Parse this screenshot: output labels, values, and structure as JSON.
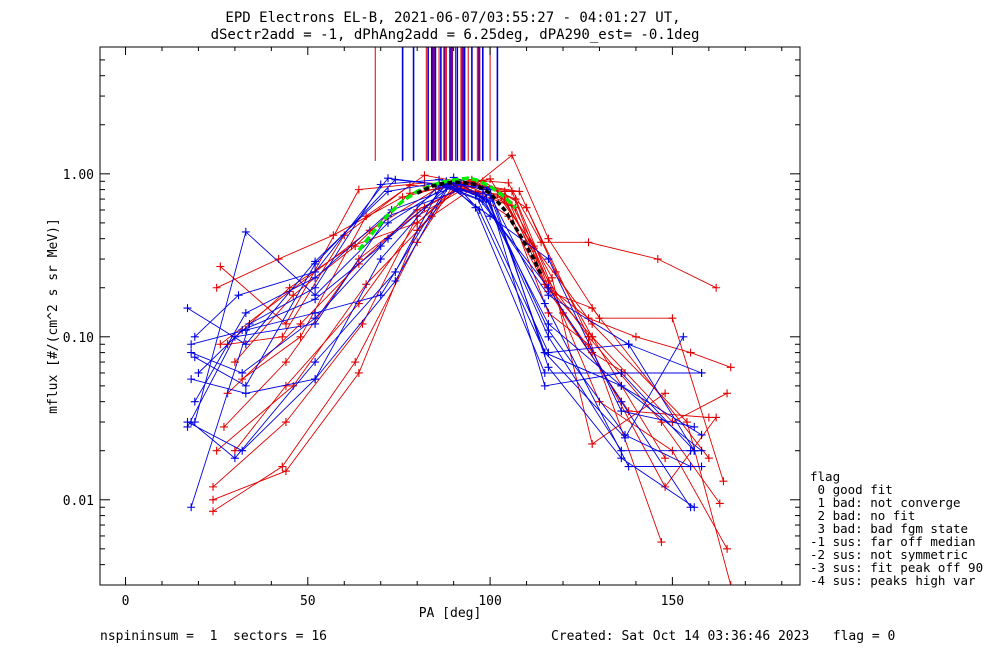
{
  "chart_data": {
    "type": "line",
    "title": "EPD Electrons EL-B, 2021-06-07/03:55:27 - 04:01:27 UT,",
    "subtitle": "dSectr2add = -1, dPhAng2add = 6.25deg, dPA290_est=  -0.1deg",
    "xlabel": "PA [deg]",
    "ylabel": "mflux [#/(cm^2 s sr MeV)]",
    "xlim": [
      -7,
      185
    ],
    "ylim": [
      0.003,
      6.0
    ],
    "yscale": "log",
    "xticks": [
      0,
      50,
      100,
      150
    ],
    "xtick_labels": [
      "0",
      "50",
      "100",
      "150"
    ],
    "yticks": [
      1.0,
      0.1,
      0.01
    ],
    "ytick_labels": [
      "1.00",
      "0.10",
      "0.01"
    ],
    "grid": false,
    "colors": {
      "red": "#e00000",
      "blue": "#0000e0",
      "purple": "#800080",
      "green": "#00ee00",
      "black": "#000000"
    },
    "top_markers": {
      "y_bottom": 1.2,
      "red": [
        68.5,
        82.5,
        86,
        88,
        90.5,
        92,
        94,
        96.5,
        100
      ],
      "blue": [
        76,
        79,
        83,
        84,
        85,
        86.5,
        89,
        91,
        93,
        95,
        98,
        102
      ],
      "purple": [
        84.5,
        87.5,
        89.5,
        92.5,
        97
      ]
    },
    "fit_green": {
      "x": [
        64,
        68,
        72,
        76,
        80,
        84,
        88,
        92,
        94,
        96,
        100,
        104,
        107
      ],
      "y": [
        0.34,
        0.44,
        0.56,
        0.68,
        0.78,
        0.85,
        0.9,
        0.93,
        0.94,
        0.92,
        0.84,
        0.72,
        0.62
      ]
    },
    "fit_black": {
      "x": [
        80,
        84,
        88,
        92,
        96,
        100,
        104,
        108,
        112,
        114
      ],
      "y": [
        0.76,
        0.84,
        0.88,
        0.89,
        0.86,
        0.76,
        0.6,
        0.43,
        0.3,
        0.24
      ]
    },
    "series": [
      {
        "color": "red",
        "x": [
          24,
          43,
          63,
          80,
          90,
          107,
          116,
          128,
          137
        ],
        "y": [
          0.0085,
          0.016,
          0.07,
          0.38,
          0.86,
          0.62,
          0.19,
          0.08,
          0.06
        ]
      },
      {
        "color": "red",
        "x": [
          24,
          44,
          64,
          80,
          92,
          106,
          116,
          128,
          148
        ],
        "y": [
          0.01,
          0.015,
          0.06,
          0.45,
          0.88,
          0.78,
          0.2,
          0.1,
          0.018
        ]
      },
      {
        "color": "red",
        "x": [
          27,
          44,
          64,
          82,
          95,
          107,
          120,
          138,
          160
        ],
        "y": [
          0.028,
          0.07,
          0.3,
          0.62,
          0.9,
          0.7,
          0.14,
          0.035,
          0.032
        ]
      },
      {
        "color": "red",
        "x": [
          25,
          46,
          66,
          84,
          98,
          110,
          127,
          147,
          163
        ],
        "y": [
          0.02,
          0.05,
          0.21,
          0.55,
          0.9,
          0.62,
          0.1,
          0.03,
          0.0095
        ]
      },
      {
        "color": "red",
        "x": [
          26,
          45,
          67,
          85,
          100,
          112,
          130,
          150,
          165
        ],
        "y": [
          0.09,
          0.19,
          0.45,
          0.8,
          0.93,
          0.35,
          0.04,
          0.02,
          0.005
        ]
      },
      {
        "color": "red",
        "x": [
          28,
          48,
          64,
          80,
          92,
          104,
          116,
          127,
          147
        ],
        "y": [
          0.045,
          0.12,
          0.28,
          0.6,
          0.82,
          0.7,
          0.22,
          0.1,
          0.0055
        ]
      },
      {
        "color": "red",
        "x": [
          24,
          44,
          65,
          80,
          94,
          106,
          117,
          128,
          148
        ],
        "y": [
          0.012,
          0.03,
          0.12,
          0.55,
          0.84,
          0.64,
          0.23,
          0.022,
          0.045
        ]
      },
      {
        "color": "red",
        "x": [
          30,
          46,
          63,
          78,
          92,
          105,
          116,
          128,
          160
        ],
        "y": [
          0.07,
          0.18,
          0.36,
          0.76,
          0.86,
          0.55,
          0.19,
          0.15,
          0.018
        ]
      },
      {
        "color": "red",
        "x": [
          25,
          42,
          57,
          76,
          95,
          105,
          114,
          127,
          146,
          162
        ],
        "y": [
          0.2,
          0.3,
          0.42,
          0.72,
          0.92,
          0.88,
          0.38,
          0.38,
          0.3,
          0.2
        ]
      },
      {
        "color": "red",
        "x": [
          26,
          44,
          64,
          82,
          96,
          106,
          116,
          130,
          150,
          164
        ],
        "y": [
          0.27,
          0.12,
          0.8,
          0.88,
          0.86,
          1.3,
          0.4,
          0.13,
          0.13,
          0.013
        ]
      },
      {
        "color": "red",
        "x": [
          28,
          45,
          62,
          80,
          92,
          104,
          115,
          127,
          140,
          155,
          166
        ],
        "y": [
          0.09,
          0.2,
          0.36,
          0.5,
          0.84,
          0.78,
          0.21,
          0.13,
          0.1,
          0.08,
          0.065
        ]
      },
      {
        "color": "red",
        "x": [
          32,
          48,
          66,
          82,
          96,
          108,
          118,
          128,
          150,
          165
        ],
        "y": [
          0.055,
          0.1,
          0.55,
          0.98,
          0.86,
          0.78,
          0.25,
          0.1,
          0.03,
          0.045
        ]
      },
      {
        "color": "red",
        "x": [
          30,
          44,
          64,
          80,
          90,
          104,
          116,
          127,
          148,
          162
        ],
        "y": [
          0.02,
          0.05,
          0.16,
          0.5,
          0.8,
          0.72,
          0.14,
          0.09,
          0.012,
          0.032
        ]
      },
      {
        "color": "red",
        "x": [
          28,
          43,
          60,
          78,
          90,
          102,
          112,
          128,
          154,
          166
        ],
        "y": [
          0.09,
          0.1,
          0.42,
          0.85,
          0.82,
          0.75,
          0.36,
          0.12,
          0.03,
          0.003
        ]
      },
      {
        "color": "blue",
        "x": [
          17,
          33,
          52,
          72,
          88,
          96,
          115,
          136,
          158
        ],
        "y": [
          0.15,
          0.09,
          0.29,
          0.78,
          0.9,
          0.62,
          0.06,
          0.06,
          0.06
        ]
      },
      {
        "color": "blue",
        "x": [
          18,
          32,
          52,
          72,
          90,
          97,
          115,
          136,
          158
        ],
        "y": [
          0.08,
          0.06,
          0.13,
          0.4,
          0.88,
          0.6,
          0.08,
          0.05,
          0.025
        ]
      },
      {
        "color": "blue",
        "x": [
          18,
          34,
          52,
          70,
          86,
          98,
          116,
          137,
          155
        ],
        "y": [
          0.009,
          0.12,
          0.2,
          0.86,
          0.92,
          0.8,
          0.11,
          0.025,
          0.016
        ]
      },
      {
        "color": "blue",
        "x": [
          18,
          30,
          52,
          74,
          87,
          99,
          115,
          138,
          158
        ],
        "y": [
          0.03,
          0.018,
          0.07,
          0.25,
          0.88,
          0.82,
          0.16,
          0.016,
          0.016
        ]
      },
      {
        "color": "blue",
        "x": [
          17,
          32,
          52,
          74,
          90,
          100,
          116,
          136,
          156
        ],
        "y": [
          0.03,
          0.02,
          0.055,
          0.22,
          0.95,
          0.8,
          0.065,
          0.018,
          0.009
        ]
      },
      {
        "color": "blue",
        "x": [
          19,
          33,
          52,
          73,
          92,
          99,
          116,
          136,
          155
        ],
        "y": [
          0.04,
          0.14,
          0.23,
          0.6,
          0.86,
          0.7,
          0.1,
          0.02,
          0.02
        ]
      },
      {
        "color": "blue",
        "x": [
          20,
          32,
          52,
          70,
          86,
          100,
          115,
          137,
          153
        ],
        "y": [
          0.06,
          0.11,
          0.17,
          0.36,
          0.85,
          0.74,
          0.08,
          0.024,
          0.1
        ]
      },
      {
        "color": "blue",
        "x": [
          18,
          33,
          52,
          70,
          88,
          98,
          116,
          138,
          158
        ],
        "y": [
          0.09,
          0.11,
          0.14,
          0.18,
          0.82,
          0.68,
          0.18,
          0.09,
          0.06
        ]
      },
      {
        "color": "blue",
        "x": [
          19,
          33,
          52,
          72,
          88,
          97,
          116,
          136,
          155
        ],
        "y": [
          0.03,
          0.44,
          0.18,
          0.5,
          0.84,
          0.7,
          0.2,
          0.04,
          0.009
        ]
      },
      {
        "color": "blue",
        "x": [
          19,
          31,
          52,
          72,
          86,
          96,
          116,
          138,
          156
        ],
        "y": [
          0.1,
          0.18,
          0.25,
          0.94,
          0.86,
          0.75,
          0.08,
          0.09,
          0.02
        ]
      },
      {
        "color": "blue",
        "x": [
          18,
          33,
          52,
          70,
          88,
          100,
          116,
          136,
          156
        ],
        "y": [
          0.055,
          0.045,
          0.055,
          0.3,
          0.86,
          0.55,
          0.3,
          0.035,
          0.028
        ]
      },
      {
        "color": "blue",
        "x": [
          17,
          30,
          52,
          72,
          92,
          100,
          115,
          136,
          156
        ],
        "y": [
          0.028,
          0.1,
          0.12,
          0.55,
          0.8,
          0.68,
          0.05,
          0.06,
          0.02
        ]
      },
      {
        "color": "blue",
        "x": [
          19,
          33,
          52,
          74,
          90,
          98,
          116,
          136,
          158
        ],
        "y": [
          0.075,
          0.05,
          0.28,
          0.92,
          0.84,
          0.72,
          0.12,
          0.05,
          0.02
        ]
      }
    ],
    "legend": {
      "title": "flag",
      "entries": [
        " 0 good fit",
        " 1 bad: not converge",
        " 2 bad: no fit",
        " 3 bad: bad fgm state",
        "-1 sus: far off median",
        "-2 sus: not symmetric",
        "-3 sus: fit peak off 90",
        "-4 sus: peaks high var"
      ],
      "placement": "right-bottom"
    },
    "footer": {
      "left": "nspininsum =  1  sectors = 16",
      "right": "Created: Sat Oct 14 03:36:46 2023   flag = 0"
    }
  }
}
